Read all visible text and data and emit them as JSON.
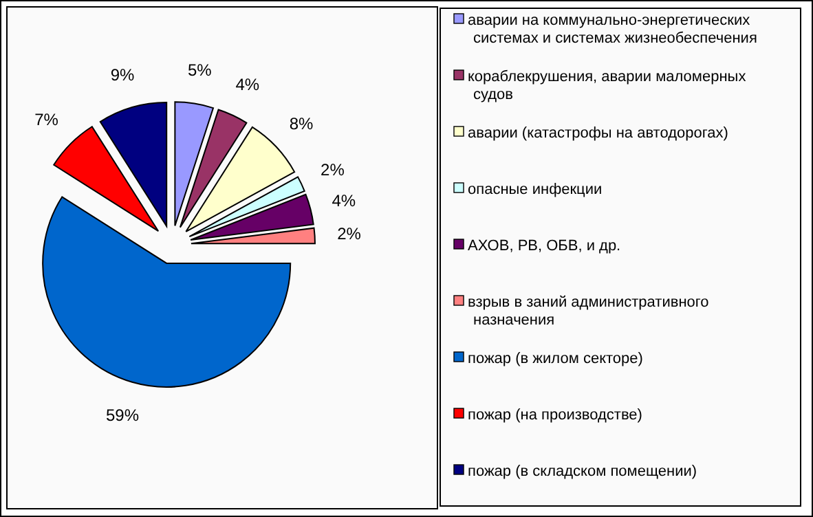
{
  "chart_data": {
    "type": "pie",
    "categories": [
      "аварии на коммунально-энергетических системах и системах жизнеобеспечения",
      "кораблекрушения, аварии маломерных судов",
      "аварии (катастрофы на автодорогах)",
      "опасные  инфекции",
      "АХОВ, РВ, ОБВ, и др.",
      "взрыв в заний административного назначения",
      "пожар (в жилом секторе)",
      "пожар (на производстве)",
      "пожар (в складском помещении)"
    ],
    "values": [
      5,
      4,
      8,
      2,
      4,
      2,
      59,
      7,
      9
    ],
    "value_labels": [
      "5%",
      "4%",
      "8%",
      "2%",
      "4%",
      "2%",
      "59%",
      "7%",
      "9%"
    ],
    "colors": [
      "#9999ff",
      "#993366",
      "#ffffcc",
      "#ccffff",
      "#660066",
      "#ff8080",
      "#0066cc",
      "#ff0000",
      "#000080"
    ],
    "legend": "right"
  }
}
